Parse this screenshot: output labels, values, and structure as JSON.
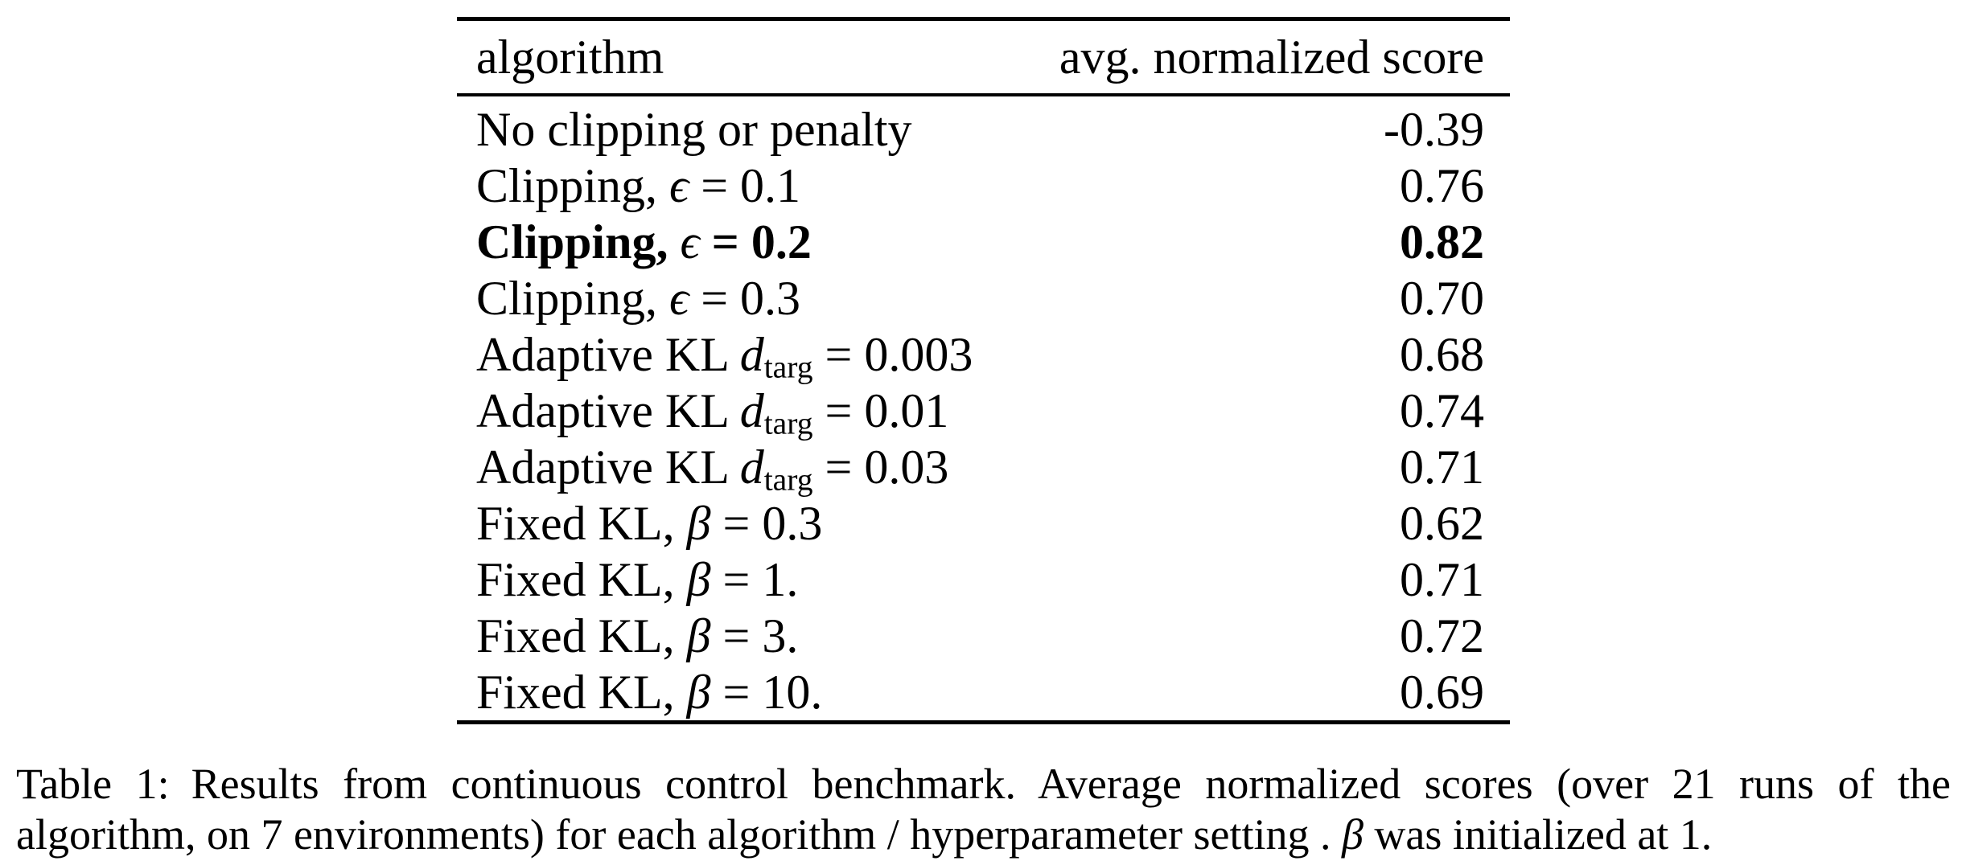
{
  "table": {
    "header": {
      "col1": "algorithm",
      "col2": "avg. normalized score"
    },
    "rows": [
      {
        "bold": false,
        "score": "-0.39",
        "parts": [
          {
            "t": "No clipping or penalty",
            "k": "plain"
          }
        ]
      },
      {
        "bold": false,
        "score": "0.76",
        "parts": [
          {
            "t": "Clipping, ",
            "k": "plain"
          },
          {
            "t": "ϵ",
            "k": "var"
          },
          {
            "t": " = 0.1",
            "k": "plain"
          }
        ]
      },
      {
        "bold": true,
        "score": "0.82",
        "parts": [
          {
            "t": "Clipping, ",
            "k": "plain"
          },
          {
            "t": "ϵ",
            "k": "var"
          },
          {
            "t": " = 0.2",
            "k": "plain"
          }
        ]
      },
      {
        "bold": false,
        "score": "0.70",
        "parts": [
          {
            "t": "Clipping, ",
            "k": "plain"
          },
          {
            "t": "ϵ",
            "k": "var"
          },
          {
            "t": " = 0.3",
            "k": "plain"
          }
        ]
      },
      {
        "bold": false,
        "score": "0.68",
        "parts": [
          {
            "t": "Adaptive KL ",
            "k": "plain"
          },
          {
            "t": "d",
            "k": "var"
          },
          {
            "t": "targ",
            "k": "sub"
          },
          {
            "t": " = 0.003",
            "k": "plain"
          }
        ]
      },
      {
        "bold": false,
        "score": "0.74",
        "parts": [
          {
            "t": "Adaptive KL ",
            "k": "plain"
          },
          {
            "t": "d",
            "k": "var"
          },
          {
            "t": "targ",
            "k": "sub"
          },
          {
            "t": " = 0.01",
            "k": "plain"
          }
        ]
      },
      {
        "bold": false,
        "score": "0.71",
        "parts": [
          {
            "t": "Adaptive KL ",
            "k": "plain"
          },
          {
            "t": "d",
            "k": "var"
          },
          {
            "t": "targ",
            "k": "sub"
          },
          {
            "t": " = 0.03",
            "k": "plain"
          }
        ]
      },
      {
        "bold": false,
        "score": "0.62",
        "parts": [
          {
            "t": "Fixed KL, ",
            "k": "plain"
          },
          {
            "t": "β",
            "k": "var"
          },
          {
            "t": " = 0.3",
            "k": "plain"
          }
        ]
      },
      {
        "bold": false,
        "score": "0.71",
        "parts": [
          {
            "t": "Fixed KL, ",
            "k": "plain"
          },
          {
            "t": "β",
            "k": "var"
          },
          {
            "t": " = 1.",
            "k": "plain"
          }
        ]
      },
      {
        "bold": false,
        "score": "0.72",
        "parts": [
          {
            "t": "Fixed KL, ",
            "k": "plain"
          },
          {
            "t": "β",
            "k": "var"
          },
          {
            "t": " = 3.",
            "k": "plain"
          }
        ]
      },
      {
        "bold": false,
        "score": "0.69",
        "parts": [
          {
            "t": "Fixed KL, ",
            "k": "plain"
          },
          {
            "t": "β",
            "k": "var"
          },
          {
            "t": " = 10.",
            "k": "plain"
          }
        ]
      }
    ]
  },
  "caption": {
    "line1": "Table 1: Results from continuous control benchmark. Average normalized scores (over 21 runs of the",
    "line2_parts": [
      {
        "t": "algorithm, on 7 environments) for each algorithm / hyperparameter setting . ",
        "k": "plain"
      },
      {
        "t": "β",
        "k": "var"
      },
      {
        "t": " was initialized at 1.",
        "k": "plain"
      }
    ]
  },
  "chart_data": {
    "type": "table",
    "columns": [
      "algorithm",
      "avg. normalized score"
    ],
    "rows": [
      [
        "No clipping or penalty",
        -0.39
      ],
      [
        "Clipping, ϵ = 0.1",
        0.76
      ],
      [
        "Clipping, ϵ = 0.2",
        0.82
      ],
      [
        "Clipping, ϵ = 0.3",
        0.7
      ],
      [
        "Adaptive KL d_targ = 0.003",
        0.68
      ],
      [
        "Adaptive KL d_targ = 0.01",
        0.74
      ],
      [
        "Adaptive KL d_targ = 0.03",
        0.71
      ],
      [
        "Fixed KL, β = 0.3",
        0.62
      ],
      [
        "Fixed KL, β = 1.",
        0.71
      ],
      [
        "Fixed KL, β = 3.",
        0.72
      ],
      [
        "Fixed KL, β = 10.",
        0.69
      ]
    ],
    "bold_row_index": 2,
    "title": "Table 1: Results from continuous control benchmark."
  }
}
